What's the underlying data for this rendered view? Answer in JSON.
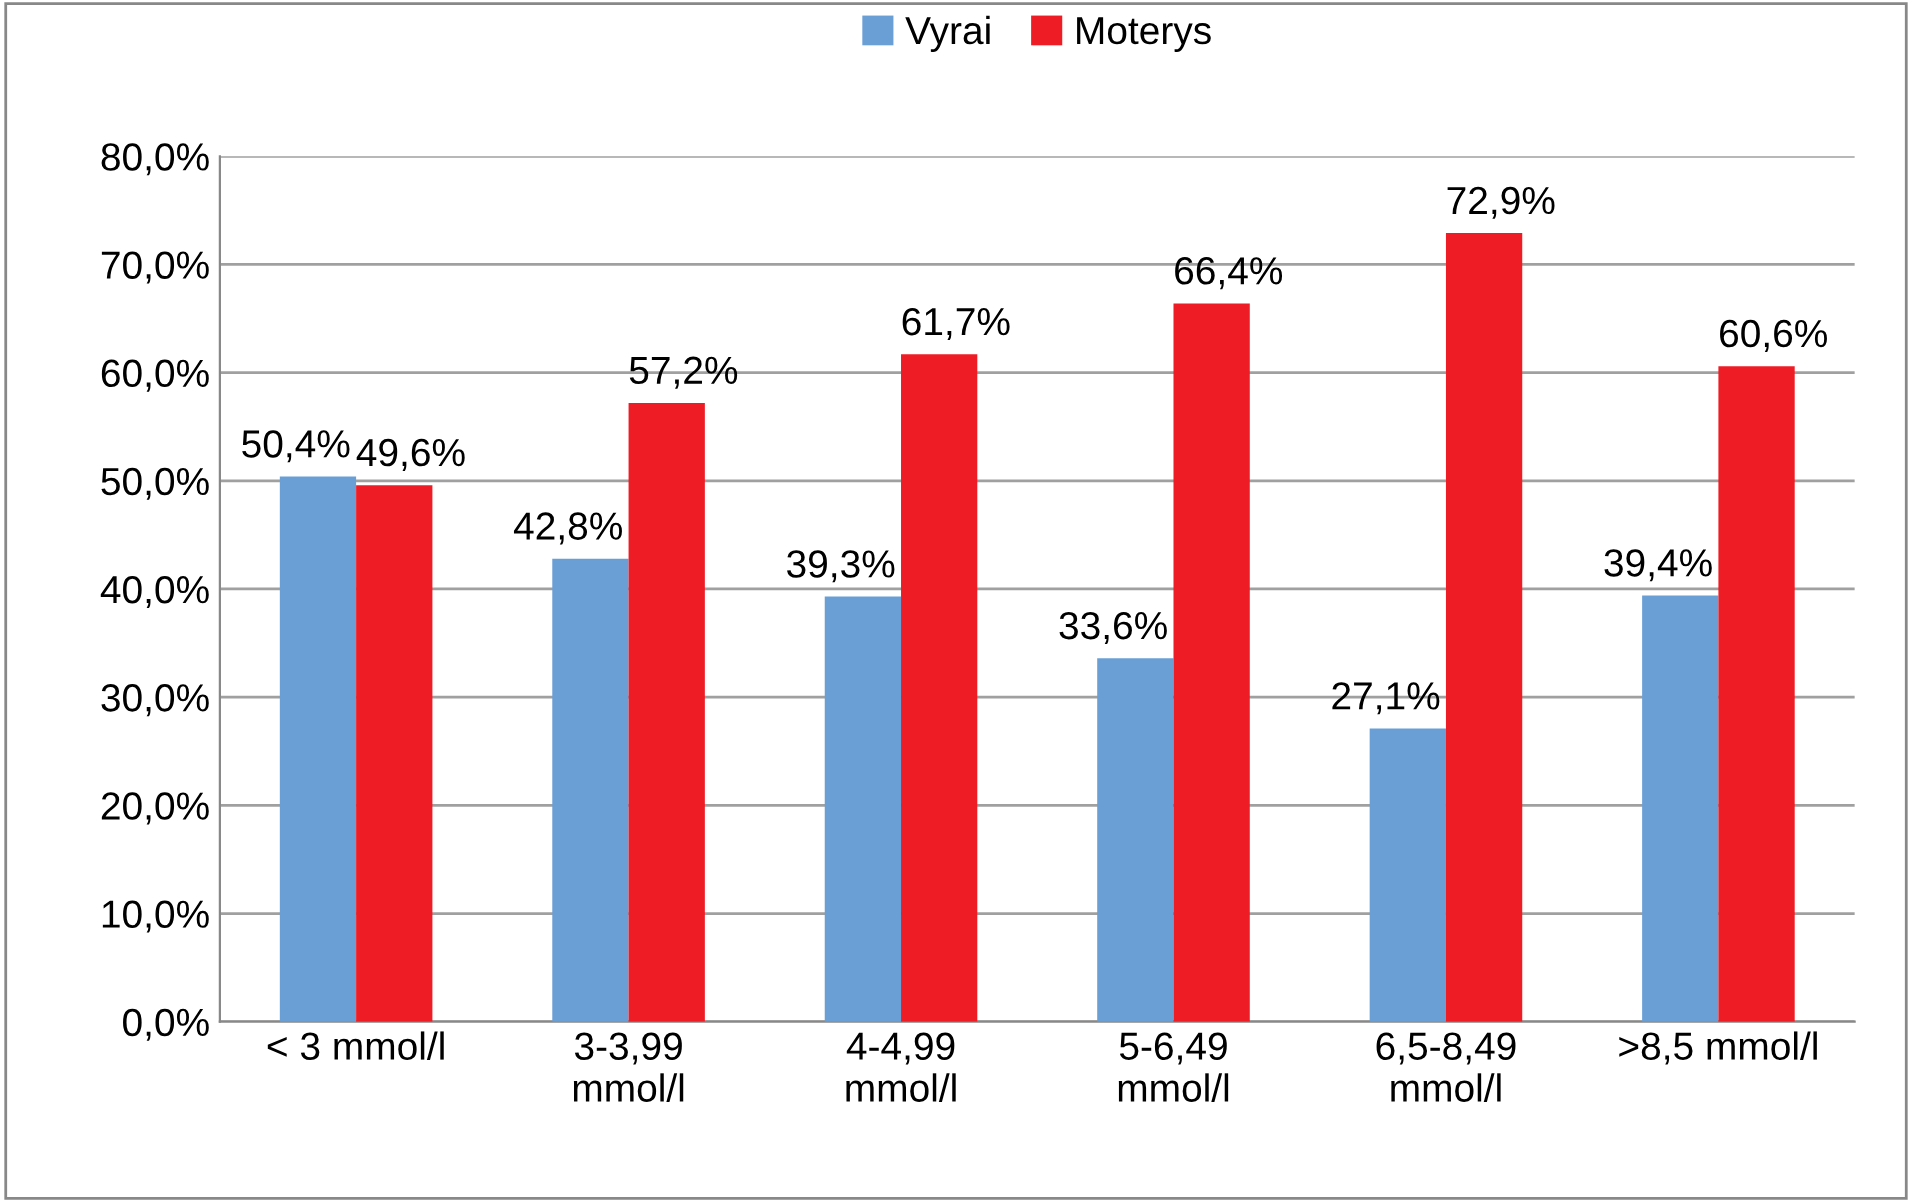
{
  "chart_data": {
    "type": "bar",
    "categories": [
      "< 3 mmol/l",
      "3-3,99\nmmol/l",
      "4-4,99\nmmol/l",
      "5-6,49\nmmol/l",
      "6,5-8,49\nmmol/l",
      ">8,5 mmol/l"
    ],
    "series": [
      {
        "name": "Vyrai",
        "color": "#6a9fd6",
        "values": [
          50.4,
          42.8,
          39.3,
          33.6,
          27.1,
          39.4
        ],
        "value_labels": [
          "50,4%",
          "42,8%",
          "39,3%",
          "33,6%",
          "27,1%",
          "39,4%"
        ]
      },
      {
        "name": "Moterys",
        "color": "#ee1c25",
        "values": [
          49.6,
          57.2,
          61.7,
          66.4,
          72.9,
          60.6
        ],
        "value_labels": [
          "49,6%",
          "57,2%",
          "61,7%",
          "66,4%",
          "72,9%",
          "60,6%"
        ]
      }
    ],
    "ylim": [
      0,
      80
    ],
    "yticks": [
      {
        "value": 0,
        "label": "0,0%"
      },
      {
        "value": 10,
        "label": "10,0%"
      },
      {
        "value": 20,
        "label": "20,0%"
      },
      {
        "value": 30,
        "label": "30,0%"
      },
      {
        "value": 40,
        "label": "40,0%"
      },
      {
        "value": 50,
        "label": "50,0%"
      },
      {
        "value": 60,
        "label": "60,0%"
      },
      {
        "value": 70,
        "label": "70,0%"
      },
      {
        "value": 80,
        "label": "80,0%"
      }
    ],
    "grid": "y",
    "legend": "top"
  }
}
